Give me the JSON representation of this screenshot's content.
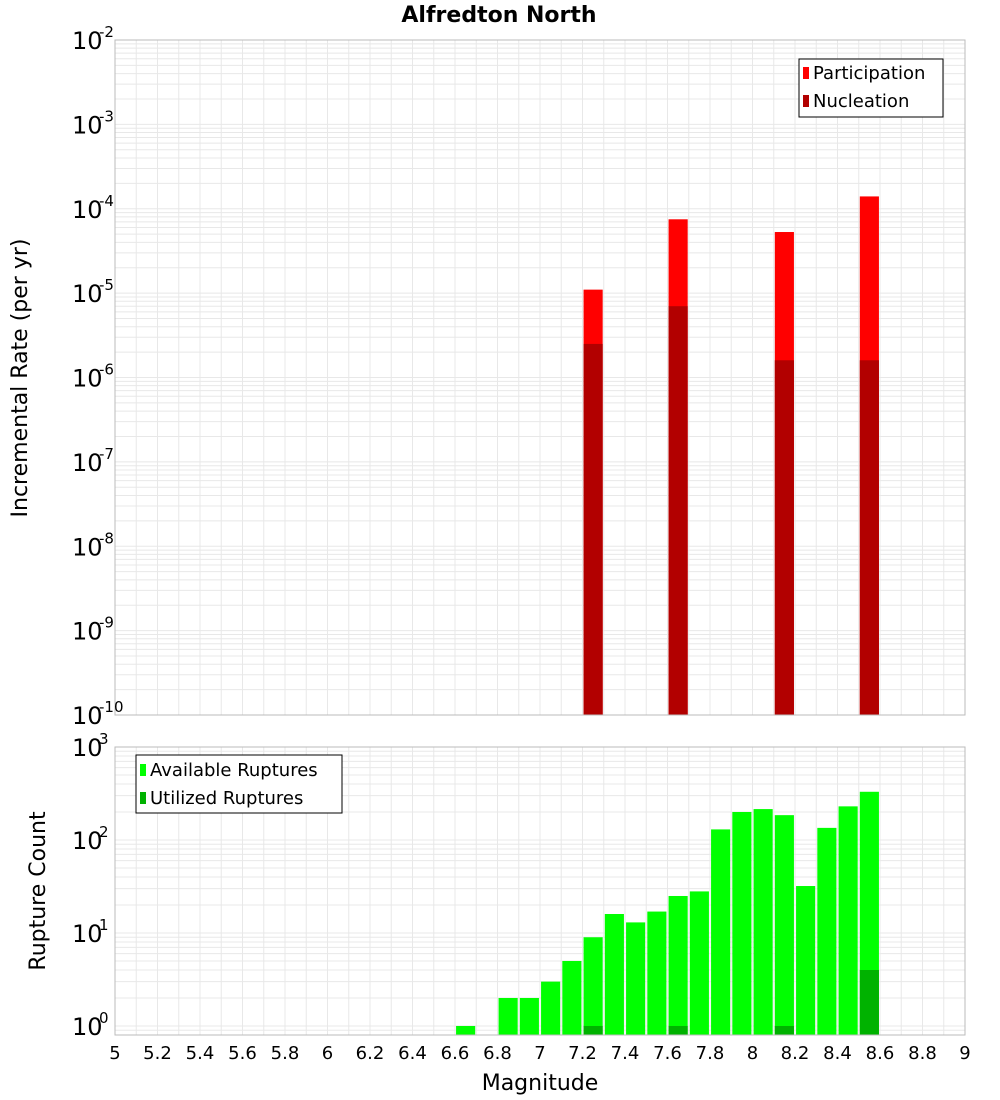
{
  "colors": {
    "participation": "#ff0000",
    "nucleation": "#b20000",
    "available": "#00ff00",
    "utilized": "#00b200",
    "grid": "#e8e8e8",
    "plot_border": "#bbbbbb"
  },
  "chart_data": [
    {
      "type": "bar",
      "title": "Alfredton North",
      "xlabel": "Magnitude",
      "ylabel": "Incremental Rate (per yr)",
      "yscale": "log",
      "xlim": [
        5,
        9
      ],
      "ylim": [
        1e-10,
        0.01
      ],
      "grid": true,
      "legend_position": "top-right",
      "bar_width": 0.09,
      "y_tick_labels": [
        {
          "base": "10",
          "exp": "-10"
        },
        {
          "base": "10",
          "exp": "-9"
        },
        {
          "base": "10",
          "exp": "-8"
        },
        {
          "base": "10",
          "exp": "-7"
        },
        {
          "base": "10",
          "exp": "-6"
        },
        {
          "base": "10",
          "exp": "-5"
        },
        {
          "base": "10",
          "exp": "-4"
        },
        {
          "base": "10",
          "exp": "-3"
        },
        {
          "base": "10",
          "exp": "-2"
        }
      ],
      "x": [
        7.25,
        7.65,
        8.15,
        8.55
      ],
      "series": [
        {
          "name": "Participation",
          "values": [
            1.1e-05,
            7.5e-05,
            5.3e-05,
            0.00014
          ]
        },
        {
          "name": "Nucleation",
          "values": [
            2.5e-06,
            7e-06,
            1.6e-06,
            1.6e-06
          ]
        }
      ]
    },
    {
      "type": "bar",
      "xlabel": "Magnitude",
      "ylabel": "Rupture Count",
      "yscale": "log",
      "xlim": [
        5,
        9
      ],
      "ylim": [
        0.8,
        1000
      ],
      "grid": true,
      "legend_position": "top-left",
      "bar_width": 0.09,
      "y_tick_labels": [
        {
          "base": "10",
          "exp": "0"
        },
        {
          "base": "10",
          "exp": "1"
        },
        {
          "base": "10",
          "exp": "2"
        },
        {
          "base": "10",
          "exp": "3"
        }
      ],
      "x_tick_labels": [
        "5",
        "5.2",
        "5.4",
        "5.6",
        "5.8",
        "6",
        "6.2",
        "6.4",
        "6.6",
        "6.8",
        "7",
        "7.2",
        "7.4",
        "7.6",
        "7.8",
        "8",
        "8.2",
        "8.4",
        "8.6",
        "8.8",
        "9"
      ],
      "x": [
        6.65,
        6.85,
        6.95,
        7.05,
        7.15,
        7.25,
        7.35,
        7.45,
        7.55,
        7.65,
        7.75,
        7.85,
        7.95,
        8.05,
        8.15,
        8.25,
        8.35,
        8.45,
        8.55
      ],
      "series": [
        {
          "name": "Available Ruptures",
          "values": [
            1,
            2,
            2,
            3,
            5,
            9,
            16,
            13,
            17,
            25,
            28,
            130,
            200,
            215,
            185,
            32,
            135,
            230,
            330
          ]
        },
        {
          "name": "Utilized Ruptures",
          "values": [
            0,
            0,
            0,
            0,
            0,
            1,
            0,
            0,
            0,
            1,
            0,
            0,
            0,
            0,
            1,
            0,
            0,
            0,
            4
          ]
        }
      ]
    }
  ]
}
